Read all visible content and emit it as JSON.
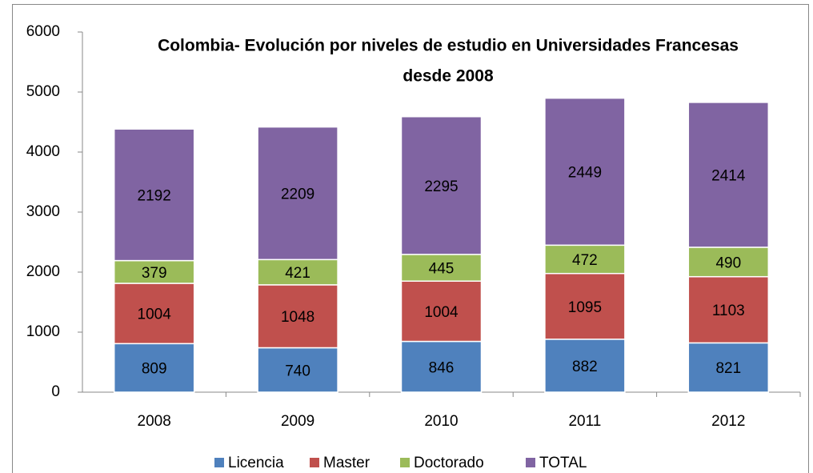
{
  "chart_data": {
    "type": "stacked_bar",
    "title": [
      "Colombia-  Evolución por niveles de estudio en Universidades Francesas",
      "desde 2008"
    ],
    "categories": [
      "2008",
      "2009",
      "2010",
      "2011",
      "2012"
    ],
    "series": [
      {
        "name": "Licencia",
        "color": "#4f81bd",
        "values": [
          809,
          740,
          846,
          882,
          821
        ]
      },
      {
        "name": "Master",
        "color": "#c0504d",
        "values": [
          1004,
          1048,
          1004,
          1095,
          1103
        ]
      },
      {
        "name": "Doctorado",
        "color": "#9bbb59",
        "values": [
          379,
          421,
          445,
          472,
          490
        ]
      },
      {
        "name": "TOTAL",
        "color": "#8064a2",
        "values": [
          2192,
          2209,
          2295,
          2449,
          2414
        ]
      }
    ],
    "ylim": [
      0,
      6000
    ],
    "yticks": [
      0,
      1000,
      2000,
      3000,
      4000,
      5000,
      6000
    ],
    "grid": false,
    "legend": "bottom"
  }
}
